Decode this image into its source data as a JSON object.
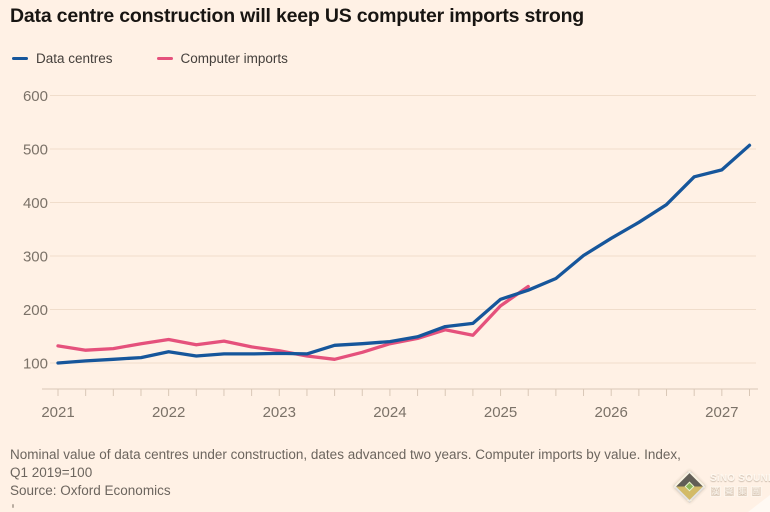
{
  "title": "Data centre construction will keep US computer imports strong",
  "legend": [
    {
      "label": "Data centres"
    },
    {
      "label": "Computer imports"
    }
  ],
  "footnote_line1": "Nominal value of data centres under construction, dates advanced two years. Computer imports by value. Index,",
  "footnote_line2": "Q1 2019=100",
  "source": "Source: Oxford Economics",
  "watermark": {
    "brand": "SiNO SOUND",
    "cjk": [
      "漢",
      "聲",
      "集",
      "團"
    ]
  },
  "colors": {
    "background": "#FFF1E5",
    "title_text": "#181512",
    "legend_text": "#45403c",
    "axis_text": "#7b7268",
    "grid_line": "#f0ddcb",
    "axis_line": "#d9c7b6",
    "footnote_text": "#6c655e"
  },
  "chart_data": {
    "type": "line",
    "title": "Data centre construction will keep US computer imports strong",
    "note": "Index, Q1 2019=100",
    "x_unit": "quarter",
    "x_start": "2021 Q1",
    "x_tick_labels": [
      "2021",
      "2022",
      "2023",
      "2024",
      "2025",
      "2026",
      "2027"
    ],
    "y_ticks": [
      100,
      200,
      300,
      400,
      500,
      600
    ],
    "ylim": [
      50,
      630
    ],
    "grid": "horizontal",
    "legend_position": "top-left",
    "series": [
      {
        "name": "Data centres",
        "color": "#16569b",
        "start": "2021 Q1",
        "end": "2027 Q2",
        "values": [
          100,
          104,
          107,
          110,
          121,
          113,
          117,
          117,
          118,
          117,
          133,
          136,
          140,
          149,
          168,
          174,
          219,
          236,
          258,
          301,
          333,
          363,
          396,
          448,
          461,
          507
        ]
      },
      {
        "name": "Computer imports",
        "color": "#e5517c",
        "start": "2021 Q1",
        "end": "2025 Q2",
        "values": [
          132,
          124,
          127,
          136,
          144,
          134,
          141,
          130,
          123,
          113,
          107,
          120,
          136,
          146,
          162,
          152,
          207,
          243
        ]
      }
    ]
  }
}
